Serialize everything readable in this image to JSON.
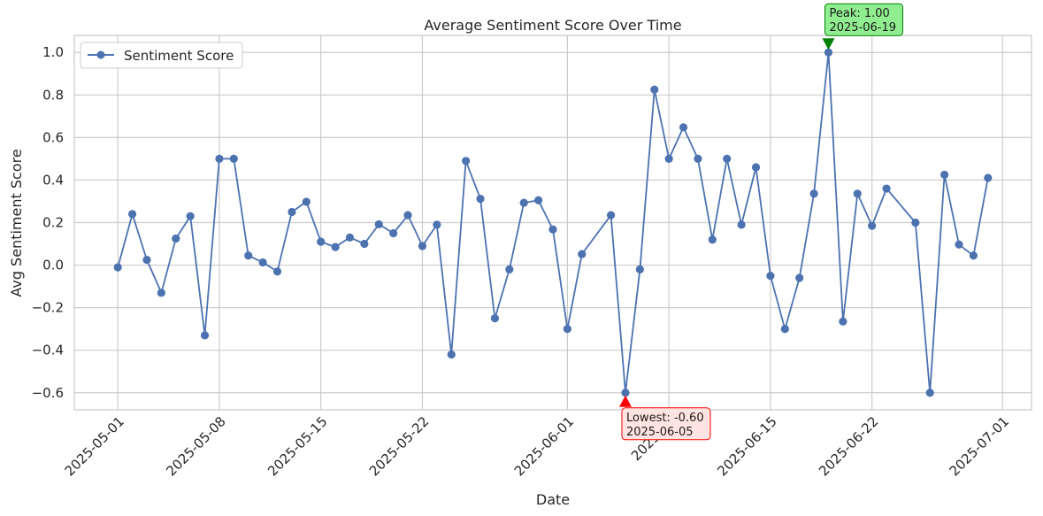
{
  "chart_data": {
    "type": "line",
    "title": "Average Sentiment Score Over Time",
    "xlabel": "Date",
    "ylabel": "Avg Sentiment Score",
    "xlim": [
      "2025-04-28",
      "2025-07-03"
    ],
    "ylim": [
      -0.68,
      1.08
    ],
    "grid": true,
    "legend_position": "top-left",
    "x_ticks": [
      "2025-05-01",
      "2025-05-08",
      "2025-05-15",
      "2025-05-22",
      "2025-06-01",
      "2025-06-08",
      "2025-06-15",
      "2025-06-22",
      "2025-07-01"
    ],
    "x_tick_labels": [
      "2025-05-01",
      "2025-05-08",
      "2025-05-15",
      "2025-05-22",
      "2025-06-01",
      "2025-06",
      "2025-06-15",
      "2025-06-22",
      "2025-07-01"
    ],
    "y_ticks": [
      -0.6,
      -0.4,
      -0.2,
      0.0,
      0.2,
      0.4,
      0.6,
      0.8,
      1.0
    ],
    "y_tick_labels": [
      "−0.6",
      "−0.4",
      "−0.2",
      "0.0",
      "0.2",
      "0.4",
      "0.6",
      "0.8",
      "1.0"
    ],
    "series": [
      {
        "name": "Sentiment Score",
        "color": "#4c72b0",
        "marker": "circle",
        "points": [
          [
            "2025-05-01",
            -0.01
          ],
          [
            "2025-05-02",
            0.24
          ],
          [
            "2025-05-03",
            0.025
          ],
          [
            "2025-05-04",
            -0.13
          ],
          [
            "2025-05-05",
            0.125
          ],
          [
            "2025-05-06",
            0.23
          ],
          [
            "2025-05-07",
            -0.33
          ],
          [
            "2025-05-08",
            0.5
          ],
          [
            "2025-05-09",
            0.5
          ],
          [
            "2025-05-10",
            0.045
          ],
          [
            "2025-05-11",
            0.013
          ],
          [
            "2025-05-12",
            -0.03
          ],
          [
            "2025-05-13",
            0.25
          ],
          [
            "2025-05-14",
            0.298
          ],
          [
            "2025-05-15",
            0.11
          ],
          [
            "2025-05-16",
            0.085
          ],
          [
            "2025-05-17",
            0.13
          ],
          [
            "2025-05-18",
            0.1
          ],
          [
            "2025-05-19",
            0.192
          ],
          [
            "2025-05-20",
            0.15
          ],
          [
            "2025-05-21",
            0.235
          ],
          [
            "2025-05-22",
            0.09
          ],
          [
            "2025-05-23",
            0.19
          ],
          [
            "2025-05-24",
            -0.42
          ],
          [
            "2025-05-25",
            0.49
          ],
          [
            "2025-05-26",
            0.312
          ],
          [
            "2025-05-27",
            -0.25
          ],
          [
            "2025-05-28",
            -0.02
          ],
          [
            "2025-05-29",
            0.293
          ],
          [
            "2025-05-30",
            0.305
          ],
          [
            "2025-05-31",
            0.168
          ],
          [
            "2025-06-01",
            -0.3
          ],
          [
            "2025-06-02",
            0.052
          ],
          [
            "2025-06-04",
            0.235
          ],
          [
            "2025-06-05",
            -0.6
          ],
          [
            "2025-06-06",
            -0.02
          ],
          [
            "2025-06-07",
            0.825
          ],
          [
            "2025-06-08",
            0.5
          ],
          [
            "2025-06-09",
            0.648
          ],
          [
            "2025-06-10",
            0.5
          ],
          [
            "2025-06-11",
            0.12
          ],
          [
            "2025-06-12",
            0.5
          ],
          [
            "2025-06-13",
            0.19
          ],
          [
            "2025-06-14",
            0.46
          ],
          [
            "2025-06-15",
            -0.05
          ],
          [
            "2025-06-16",
            -0.3
          ],
          [
            "2025-06-17",
            -0.06
          ],
          [
            "2025-06-18",
            0.336
          ],
          [
            "2025-06-19",
            1.0
          ],
          [
            "2025-06-20",
            -0.265
          ],
          [
            "2025-06-21",
            0.336
          ],
          [
            "2025-06-22",
            0.185
          ],
          [
            "2025-06-23",
            0.36
          ],
          [
            "2025-06-25",
            0.2
          ],
          [
            "2025-06-26",
            -0.6
          ],
          [
            "2025-06-27",
            0.425
          ],
          [
            "2025-06-28",
            0.097
          ],
          [
            "2025-06-29",
            0.045
          ],
          [
            "2025-06-30",
            0.41
          ]
        ]
      }
    ],
    "annotations": [
      {
        "kind": "peak",
        "label": "Peak: 1.00",
        "date_label": "2025-06-19",
        "x": "2025-06-19",
        "y": 1.0,
        "arrow_color": "#008000",
        "box_fill": "#90ee90",
        "box_stroke": "#008000"
      },
      {
        "kind": "lowest",
        "label": "Lowest: -0.60",
        "date_label": "2025-06-05",
        "x": "2025-06-05",
        "y": -0.6,
        "arrow_color": "#ff0000",
        "box_fill": "#ffe4e1",
        "box_stroke": "#ff0000"
      }
    ],
    "style": {
      "background": "#ffffff",
      "grid_color": "#cccccc",
      "frame_color": "#cccccc"
    }
  }
}
